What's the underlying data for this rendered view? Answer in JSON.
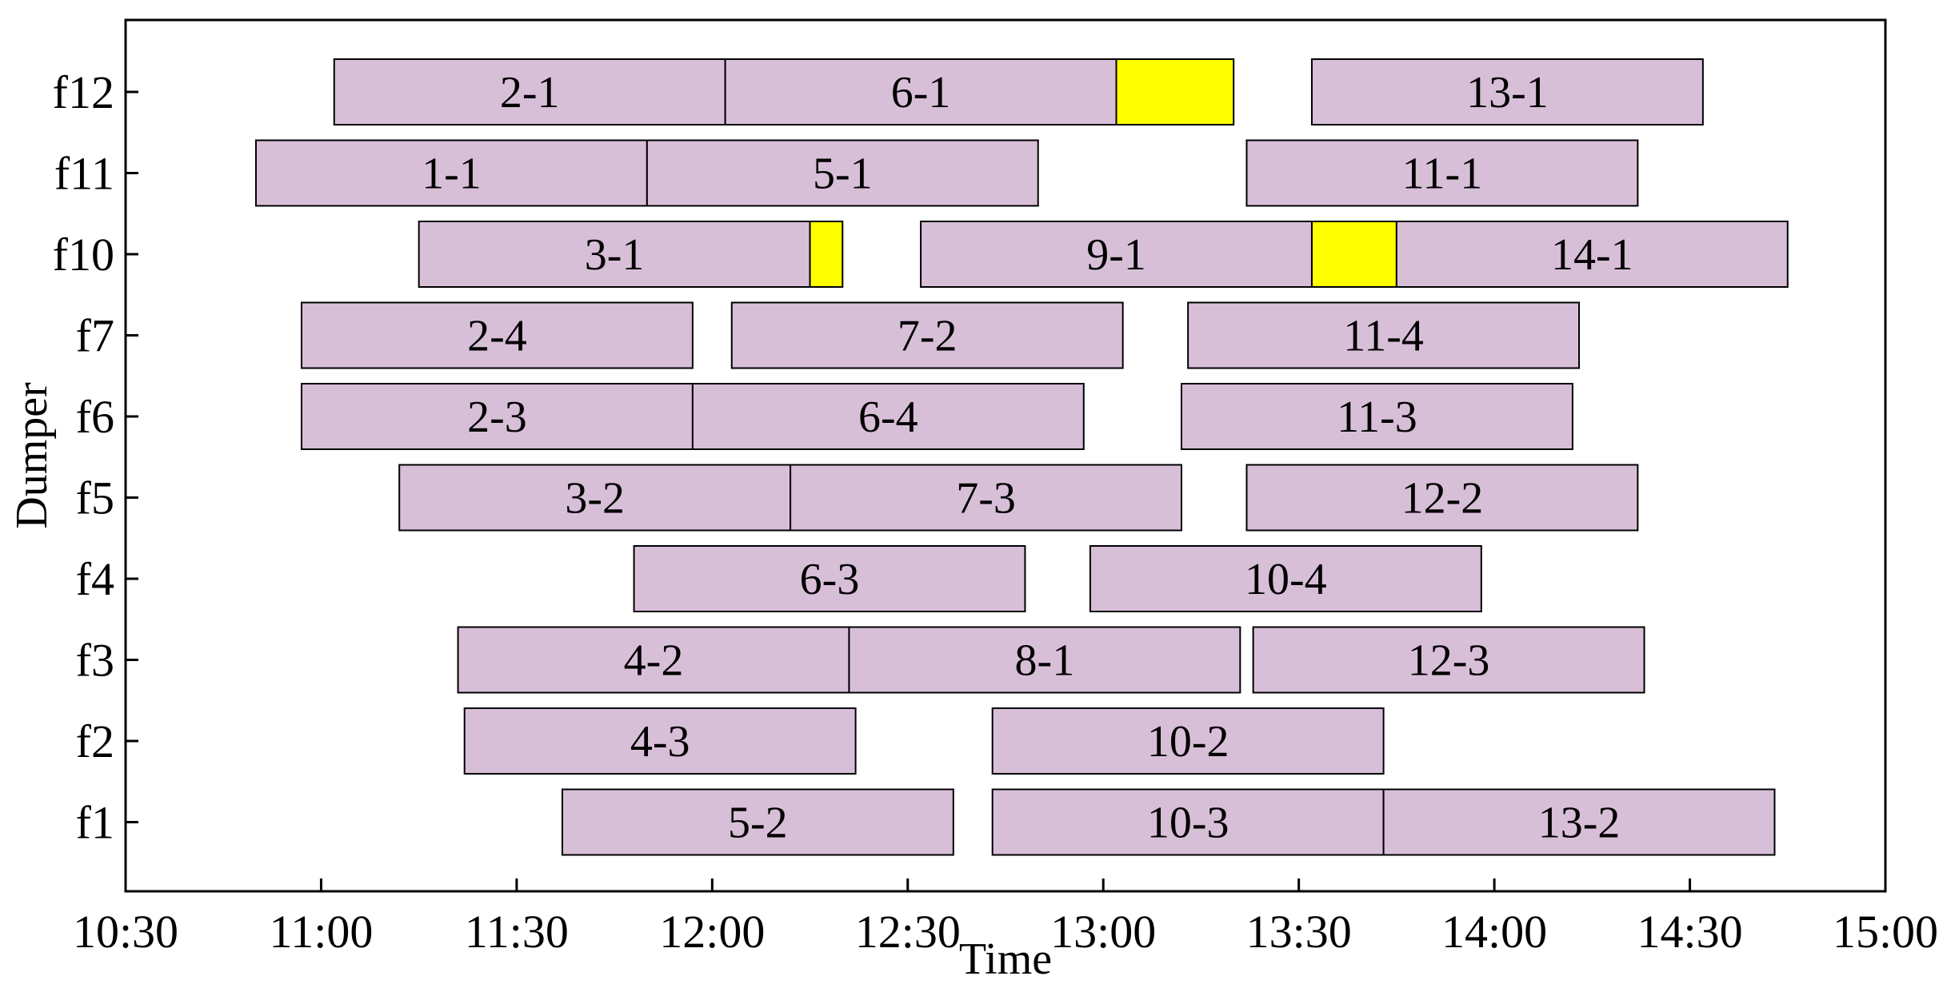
{
  "chart_data": {
    "type": "gantt",
    "title": "",
    "xlabel": "Time",
    "ylabel": "Dumper",
    "x_unit": "time (HH:MM)",
    "xlim": [
      "10:30",
      "15:00"
    ],
    "x_ticks": [
      "10:30",
      "11:00",
      "11:30",
      "12:00",
      "12:30",
      "13:00",
      "13:30",
      "14:00",
      "14:30",
      "15:00"
    ],
    "rows": [
      "f12",
      "f11",
      "f10",
      "f7",
      "f6",
      "f5",
      "f4",
      "f3",
      "f2",
      "f1"
    ],
    "grid": false,
    "colors": {
      "task": "#d8bfd8",
      "idle": "#ffff00",
      "outline": "#000000"
    },
    "tasks": [
      {
        "row": "f12",
        "label": "2-1",
        "start": "11:02",
        "end": "12:02",
        "kind": "task"
      },
      {
        "row": "f12",
        "label": "6-1",
        "start": "12:02",
        "end": "13:02",
        "kind": "task"
      },
      {
        "row": "f12",
        "label": "",
        "start": "13:02",
        "end": "13:20",
        "kind": "idle"
      },
      {
        "row": "f12",
        "label": "13-1",
        "start": "13:32",
        "end": "14:32",
        "kind": "task"
      },
      {
        "row": "f11",
        "label": "1-1",
        "start": "10:50",
        "end": "11:50",
        "kind": "task"
      },
      {
        "row": "f11",
        "label": "5-1",
        "start": "11:50",
        "end": "12:50",
        "kind": "task"
      },
      {
        "row": "f11",
        "label": "11-1",
        "start": "13:22",
        "end": "14:22",
        "kind": "task"
      },
      {
        "row": "f10",
        "label": "3-1",
        "start": "11:15",
        "end": "12:15",
        "kind": "task"
      },
      {
        "row": "f10",
        "label": "",
        "start": "12:15",
        "end": "12:20",
        "kind": "idle"
      },
      {
        "row": "f10",
        "label": "9-1",
        "start": "12:32",
        "end": "13:32",
        "kind": "task"
      },
      {
        "row": "f10",
        "label": "",
        "start": "13:32",
        "end": "13:45",
        "kind": "idle"
      },
      {
        "row": "f10",
        "label": "14-1",
        "start": "13:45",
        "end": "14:45",
        "kind": "task"
      },
      {
        "row": "f7",
        "label": "2-4",
        "start": "10:57",
        "end": "11:57",
        "kind": "task"
      },
      {
        "row": "f7",
        "label": "7-2",
        "start": "12:03",
        "end": "13:03",
        "kind": "task"
      },
      {
        "row": "f7",
        "label": "11-4",
        "start": "13:13",
        "end": "14:13",
        "kind": "task"
      },
      {
        "row": "f6",
        "label": "2-3",
        "start": "10:57",
        "end": "11:57",
        "kind": "task"
      },
      {
        "row": "f6",
        "label": "6-4",
        "start": "11:57",
        "end": "12:57",
        "kind": "task"
      },
      {
        "row": "f6",
        "label": "11-3",
        "start": "13:12",
        "end": "14:12",
        "kind": "task"
      },
      {
        "row": "f5",
        "label": "3-2",
        "start": "11:12",
        "end": "12:12",
        "kind": "task"
      },
      {
        "row": "f5",
        "label": "7-3",
        "start": "12:12",
        "end": "13:12",
        "kind": "task"
      },
      {
        "row": "f5",
        "label": "12-2",
        "start": "13:22",
        "end": "14:22",
        "kind": "task"
      },
      {
        "row": "f4",
        "label": "6-3",
        "start": "11:48",
        "end": "12:48",
        "kind": "task"
      },
      {
        "row": "f4",
        "label": "10-4",
        "start": "12:58",
        "end": "13:58",
        "kind": "task"
      },
      {
        "row": "f3",
        "label": "4-2",
        "start": "11:21",
        "end": "12:21",
        "kind": "task"
      },
      {
        "row": "f3",
        "label": "8-1",
        "start": "12:21",
        "end": "13:21",
        "kind": "task"
      },
      {
        "row": "f3",
        "label": "12-3",
        "start": "13:23",
        "end": "14:23",
        "kind": "task"
      },
      {
        "row": "f2",
        "label": "4-3",
        "start": "11:22",
        "end": "12:22",
        "kind": "task"
      },
      {
        "row": "f2",
        "label": "10-2",
        "start": "12:43",
        "end": "13:43",
        "kind": "task"
      },
      {
        "row": "f1",
        "label": "5-2",
        "start": "11:37",
        "end": "12:37",
        "kind": "task"
      },
      {
        "row": "f1",
        "label": "10-3",
        "start": "12:43",
        "end": "13:43",
        "kind": "task"
      },
      {
        "row": "f1",
        "label": "13-2",
        "start": "13:43",
        "end": "14:43",
        "kind": "task"
      }
    ]
  }
}
